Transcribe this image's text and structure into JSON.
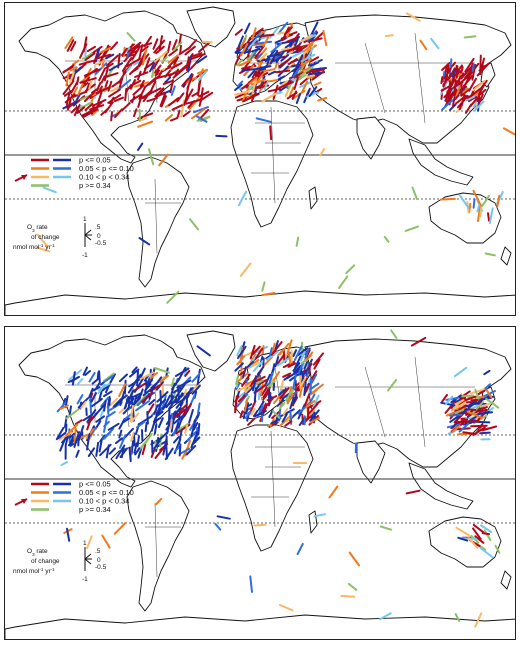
{
  "panels": [
    {
      "id": "top",
      "legend": {
        "rows": [
          "p <= 0.05",
          "0.05 < p <= 0.10",
          "0.10 < p < 0.34",
          "p >= 0.34"
        ],
        "scale_title_1": "O",
        "scale_title_sub": "3",
        "scale_title_2": "rate",
        "scale_title_3": "of change",
        "scale_units": "nmol mol",
        "scale_units_sup1": "-1",
        "scale_units_yr": "yr",
        "scale_units_sup2": "-1",
        "scale_ticks": [
          "1",
          ".5",
          "0",
          "-0.5",
          "-1"
        ]
      },
      "regions": [
        {
          "name": "north-america",
          "x0": 58,
          "x1": 196,
          "y0": 42,
          "y1": 118,
          "n": 260,
          "mix": {
            "red": 0.7,
            "orange": 0.1,
            "lorange": 0.05,
            "blue": 0.06,
            "mblue": 0.03,
            "lblue": 0.02,
            "green": 0.04
          },
          "dir": 50
        },
        {
          "name": "europe",
          "x0": 230,
          "x1": 310,
          "y0": 30,
          "y1": 100,
          "n": 230,
          "mix": {
            "red": 0.3,
            "orange": 0.18,
            "lorange": 0.08,
            "blue": 0.22,
            "mblue": 0.08,
            "lblue": 0.06,
            "green": 0.08
          },
          "dir": 40
        },
        {
          "name": "east-asia",
          "x0": 436,
          "x1": 476,
          "y0": 66,
          "y1": 110,
          "n": 95,
          "mix": {
            "red": 0.75,
            "orange": 0.05,
            "lorange": 0.04,
            "blue": 0.08,
            "mblue": 0.03,
            "lblue": 0.02,
            "green": 0.03
          },
          "dir": 60
        },
        {
          "name": "australia-se",
          "x0": 460,
          "x1": 494,
          "y0": 200,
          "y1": 222,
          "n": 14,
          "mix": {
            "red": 0.1,
            "orange": 0.1,
            "lorange": 0.2,
            "blue": 0.05,
            "mblue": 0.1,
            "lblue": 0.3,
            "green": 0.15
          },
          "dir": 90
        },
        {
          "name": "scattered",
          "x0": 20,
          "x1": 500,
          "y0": 10,
          "y1": 290,
          "n": 40,
          "mix": {
            "red": 0.05,
            "orange": 0.15,
            "lorange": 0.2,
            "blue": 0.05,
            "mblue": 0.1,
            "lblue": 0.15,
            "green": 0.3
          },
          "dir": 0
        }
      ]
    },
    {
      "id": "bottom",
      "legend": {
        "rows": [
          "p <= 0.05",
          "0.05 < p <= 0.10",
          "0.10 < p < 0.34",
          "p >= 0.34"
        ],
        "scale_title_1": "O",
        "scale_title_sub": "3",
        "scale_title_2": "rate",
        "scale_title_3": "of change",
        "scale_units": "nmol mol",
        "scale_units_sup1": "-1",
        "scale_units_yr": "yr",
        "scale_units_sup2": "-1",
        "scale_ticks": [
          "1",
          ".5",
          "0",
          "-0.5",
          "-1"
        ]
      },
      "regions": [
        {
          "name": "north-america",
          "x0": 58,
          "x1": 196,
          "y0": 40,
          "y1": 124,
          "n": 300,
          "mix": {
            "red": 0.04,
            "orange": 0.05,
            "lorange": 0.04,
            "blue": 0.72,
            "mblue": 0.08,
            "lblue": 0.03,
            "green": 0.04
          },
          "dir": 240
        },
        {
          "name": "europe",
          "x0": 230,
          "x1": 310,
          "y0": 26,
          "y1": 100,
          "n": 230,
          "mix": {
            "red": 0.25,
            "orange": 0.15,
            "lorange": 0.1,
            "blue": 0.25,
            "mblue": 0.1,
            "lblue": 0.07,
            "green": 0.08
          },
          "dir": 60
        },
        {
          "name": "east-asia",
          "x0": 436,
          "x1": 478,
          "y0": 66,
          "y1": 108,
          "n": 95,
          "mix": {
            "red": 0.3,
            "orange": 0.1,
            "lorange": 0.1,
            "blue": 0.25,
            "mblue": 0.1,
            "lblue": 0.1,
            "green": 0.05
          },
          "dir": 20
        },
        {
          "name": "australia-se",
          "x0": 462,
          "x1": 496,
          "y0": 200,
          "y1": 230,
          "n": 16,
          "mix": {
            "red": 0.35,
            "orange": 0.1,
            "lorange": 0.15,
            "blue": 0.05,
            "mblue": 0.05,
            "lblue": 0.15,
            "green": 0.15
          },
          "dir": 150
        },
        {
          "name": "scattered",
          "x0": 20,
          "x1": 500,
          "y0": 10,
          "y1": 295,
          "n": 40,
          "mix": {
            "red": 0.1,
            "orange": 0.2,
            "lorange": 0.2,
            "blue": 0.05,
            "mblue": 0.1,
            "lblue": 0.1,
            "green": 0.25
          },
          "dir": 0
        }
      ]
    }
  ],
  "colors": {
    "red": "#b3071b",
    "orange": "#f07a1c",
    "lorange": "#fcb765",
    "blue": "#1732a8",
    "mblue": "#2f6fe0",
    "lblue": "#76c6f0",
    "green": "#8cc166"
  }
}
